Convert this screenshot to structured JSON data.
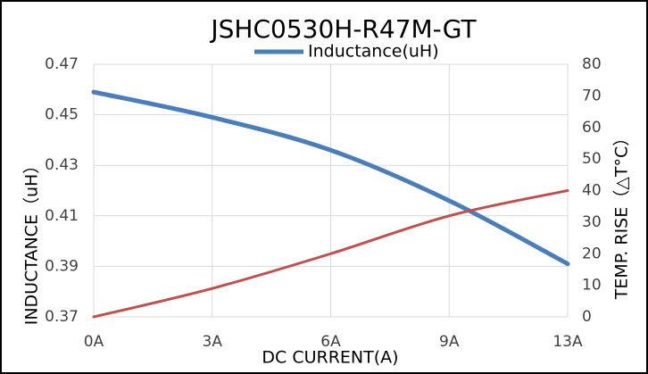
{
  "chart_data": {
    "type": "line",
    "title": "JSHC0530H-R47M-GT",
    "x_label": "DC CURRENT(A)",
    "y_label": "INDUCTANCE（uH）",
    "y2_label": "TEMP. RISE（△T°C）",
    "categories": [
      "0A",
      "3A",
      "6A",
      "9A",
      "13A"
    ],
    "series": [
      {
        "name": "Inductance(uH)",
        "color": "#4a7ebb",
        "values": [
          0.459,
          0.449,
          0.436,
          0.416,
          0.391
        ]
      },
      {
        "color": "#c0504d",
        "axis": "y2",
        "values": [
          0,
          9,
          20,
          32,
          40
        ]
      }
    ],
    "ylim": [
      0.37,
      0.47
    ],
    "yticks": [
      0.37,
      0.39,
      0.41,
      0.43,
      0.45,
      0.47
    ],
    "y2lim": [
      0,
      80
    ],
    "y2ticks": [
      0,
      10,
      20,
      30,
      40,
      50,
      60,
      70,
      80
    ],
    "grid": true,
    "legend": "top"
  }
}
